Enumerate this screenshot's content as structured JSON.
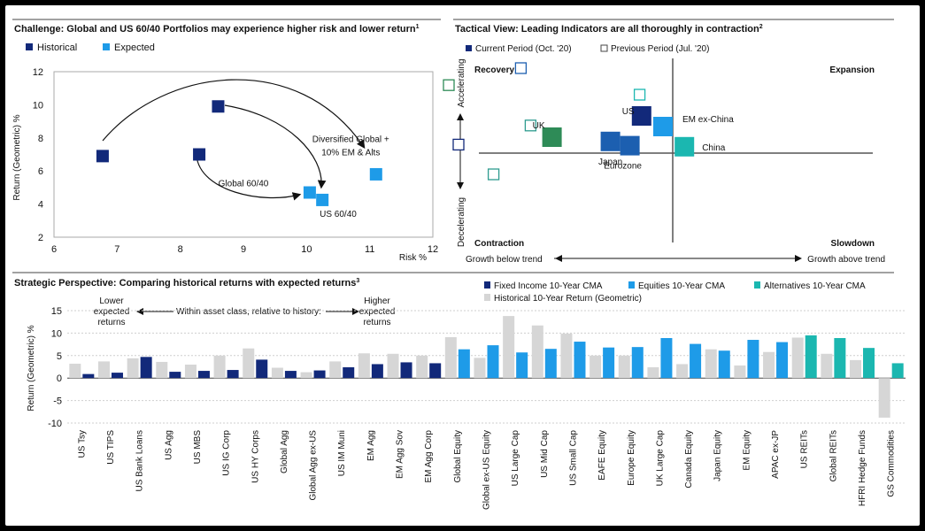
{
  "colors": {
    "historical": "#12297a",
    "expected": "#1e9be8",
    "current": "#12297a",
    "fixed_income": "#12297a",
    "equities": "#1e9be8",
    "alternatives": "#1bb7b0",
    "historical_return": "#d6d6d6"
  },
  "chart_data": [
    {
      "type": "scatter",
      "title": "Challenge: Global and US 60/40 Portfolios may experience higher risk and lower return",
      "title_sup": "1",
      "xlabel": "Risk %",
      "ylabel": "Return (Geometric) %",
      "xlim": [
        6,
        12
      ],
      "ylim": [
        2,
        12
      ],
      "xticks": [
        "6",
        "7",
        "8",
        "9",
        "10",
        "11",
        "12"
      ],
      "yticks": [
        "2",
        "4",
        "6",
        "8",
        "10",
        "12"
      ],
      "series": [
        {
          "name": "Historical",
          "points": [
            {
              "x": 6.77,
              "y": 6.9
            },
            {
              "x": 8.3,
              "y": 7.0
            },
            {
              "x": 8.6,
              "y": 9.9
            }
          ]
        },
        {
          "name": "Expected",
          "points": [
            {
              "x": 10.05,
              "y": 4.7
            },
            {
              "x": 10.25,
              "y": 4.25
            },
            {
              "x": 11.1,
              "y": 5.8
            }
          ]
        }
      ],
      "annotations": [
        {
          "text": "Global 60/40",
          "x": 9.0,
          "y": 5.3
        },
        {
          "text": "US 60/40",
          "x": 10.5,
          "y": 3.45
        },
        {
          "text": "Diversified Global +",
          "x": 10.7,
          "y": 7.95
        },
        {
          "text": "10% EM & Alts",
          "x": 10.7,
          "y": 7.15
        }
      ]
    },
    {
      "type": "scatter",
      "title": "Tactical View: Leading Indicators are all thoroughly in contraction",
      "title_sup": "2",
      "quadrants": [
        "Recovery",
        "Expansion",
        "Contraction",
        "Slowdown"
      ],
      "ylabel_top": "Accelerating",
      "ylabel_bottom": "Decelerating",
      "xlabel_left": "Growth below trend",
      "xlabel_right": "Growth above trend",
      "series": [
        {
          "name": "Current Period (Oct. '20)",
          "points": [
            {
              "x": -0.62,
              "y": 0.15,
              "label": "UK",
              "color": "#2e8b57"
            },
            {
              "x": -0.32,
              "y": 0.11,
              "label": "Japan",
              "color": "#1c5fb0"
            },
            {
              "x": -0.16,
              "y": 0.35,
              "label": "US",
              "color": "#12297a"
            },
            {
              "x": -0.22,
              "y": 0.07,
              "label": "Eurozone",
              "color": "#1c5fb0"
            },
            {
              "x": -0.05,
              "y": 0.25,
              "label": "EM ex-China",
              "color": "#1e9be8"
            },
            {
              "x": 0.06,
              "y": 0.06,
              "label": "China",
              "color": "#1bb7b0"
            }
          ]
        },
        {
          "name": "Previous Period (Jul. '20)",
          "points": [
            {
              "x": -1.15,
              "y": 0.64,
              "color": "#2e8b57"
            },
            {
              "x": -0.78,
              "y": 0.8,
              "color": "#1c5fb0"
            },
            {
              "x": -1.1,
              "y": 0.08,
              "color": "#12297a"
            },
            {
              "x": -0.73,
              "y": 0.26,
              "color": "#2e9b8f"
            },
            {
              "x": -0.17,
              "y": 0.55,
              "color": "#1bb7b0"
            },
            {
              "x": -0.92,
              "y": -0.2,
              "color": "#2e9b8f"
            }
          ]
        }
      ]
    },
    {
      "type": "bar",
      "title": "Strategic Perspective: Comparing historical returns with expected returns",
      "title_sup": "3",
      "ylabel": "Return (Geometric) %",
      "ylim": [
        -10,
        15
      ],
      "yticks": [
        "-10",
        "-5",
        "0",
        "5",
        "10",
        "15"
      ],
      "annotations": [
        "Lower expected returns",
        "Within asset class, relative to history:",
        "Higher expected returns"
      ],
      "legend": [
        "Fixed Income 10-Year CMA",
        "Equities 10-Year CMA",
        "Alternatives 10-Year CMA",
        "Historical 10-Year Return (Geometric)"
      ],
      "categories": [
        "US Tsy",
        "US TIPS",
        "US Bank Loans",
        "US Agg",
        "US MBS",
        "US IG Corp",
        "US HY Corps",
        "Global Agg",
        "Global Agg ex-US",
        "US IM Muni",
        "EM Agg",
        "EM Agg Sov",
        "EM Agg Corp",
        "Global Equity",
        "Global ex-US Equity",
        "US Large Cap",
        "US Mid Cap",
        "US Small Cap",
        "EAFE Equity",
        "Europe Equity",
        "UK Large Cap",
        "Canada Equity",
        "Japan Equity",
        "EM Equity",
        "APAC ex-JP",
        "US REITs",
        "Global REITs",
        "HFRI Hedge Funds",
        "GS Commodities"
      ],
      "groups": [
        "fi",
        "fi",
        "fi",
        "fi",
        "fi",
        "fi",
        "fi",
        "fi",
        "fi",
        "fi",
        "fi",
        "fi",
        "fi",
        "eq",
        "eq",
        "eq",
        "eq",
        "eq",
        "eq",
        "eq",
        "eq",
        "eq",
        "eq",
        "eq",
        "eq",
        "alt",
        "alt",
        "alt",
        "alt"
      ],
      "historical": [
        3.2,
        3.7,
        4.4,
        3.6,
        3.0,
        5.0,
        6.6,
        2.3,
        1.3,
        3.7,
        5.5,
        5.4,
        5.0,
        9.1,
        4.5,
        13.8,
        11.7,
        9.9,
        5.0,
        5.0,
        2.4,
        3.1,
        6.4,
        2.8,
        5.8,
        9.0,
        5.4,
        4.0,
        -8.8
      ],
      "cma": [
        0.9,
        1.2,
        4.7,
        1.4,
        1.6,
        1.8,
        4.1,
        1.6,
        1.7,
        2.4,
        3.1,
        3.5,
        3.3,
        6.4,
        7.3,
        5.7,
        6.5,
        8.1,
        6.8,
        6.9,
        8.9,
        7.6,
        6.1,
        8.5,
        8.0,
        9.5,
        8.9,
        6.7,
        3.3
      ]
    }
  ]
}
